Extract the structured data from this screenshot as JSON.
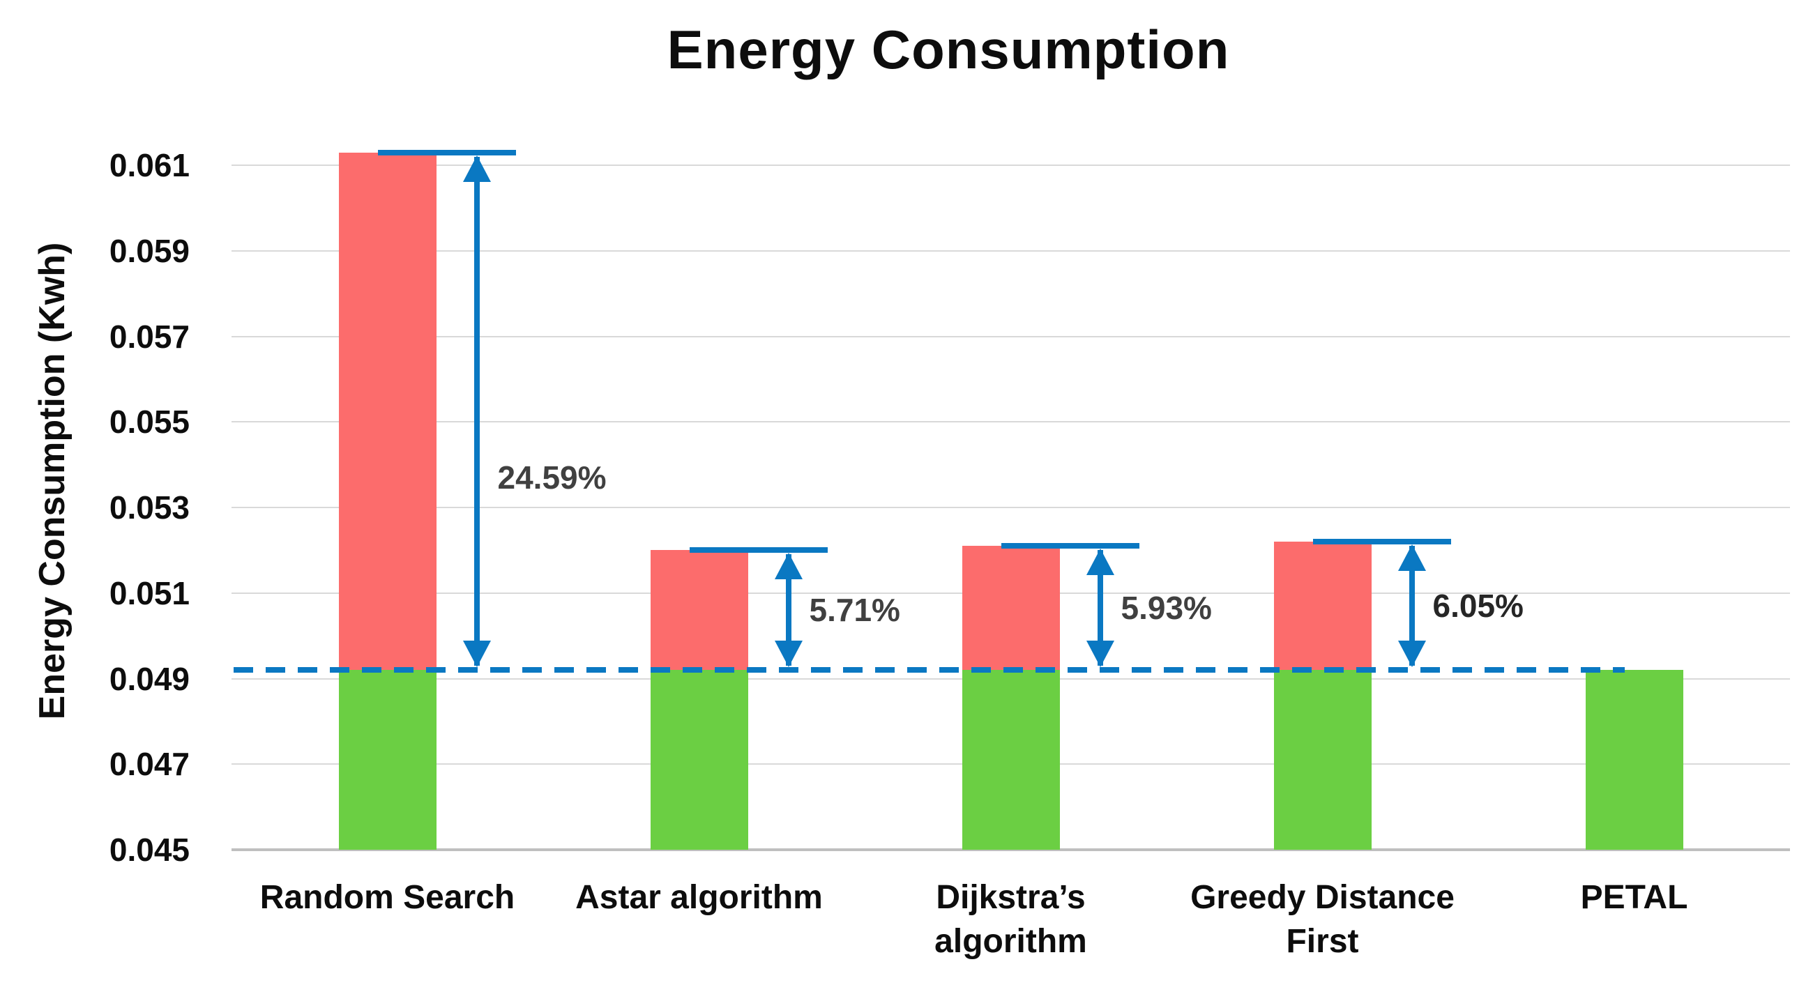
{
  "chart_data": {
    "type": "bar",
    "stacked": true,
    "title": "Energy Consumption",
    "ylabel": "Energy Consumption (Kwh)",
    "xlabel": "",
    "ylim": [
      0.045,
      0.061
    ],
    "ytick_step": 0.002,
    "yticks": [
      "0.045",
      "0.047",
      "0.049",
      "0.051",
      "0.053",
      "0.055",
      "0.057",
      "0.059",
      "0.061"
    ],
    "grid": true,
    "legend": "none",
    "categories": [
      "Random Search",
      "Astar algorithm",
      "Dijkstra’s algorithm",
      "Greedy Distance First",
      "PETAL"
    ],
    "category_label_lines": [
      [
        "Random Search"
      ],
      [
        "Astar algorithm"
      ],
      [
        "Dijkstra’s",
        "algorithm"
      ],
      [
        "Greedy Distance",
        "First"
      ],
      [
        "PETAL"
      ]
    ],
    "series": [
      {
        "name": "green-baseline-segment",
        "color": "#6BCF43",
        "values": [
          0.0492,
          0.0492,
          0.0492,
          0.0492,
          0.0492
        ]
      },
      {
        "name": "red-excess-segment",
        "color": "#FC6C6C",
        "values": [
          0.0121,
          0.0028,
          0.0029,
          0.003,
          0.0
        ]
      }
    ],
    "bar_totals": [
      0.0613,
      0.052,
      0.0521,
      0.0522,
      0.0492
    ],
    "baseline": {
      "value": 0.0492,
      "line_style": "dashed",
      "color": "#0A78C2"
    },
    "annotations": [
      {
        "category": "Random Search",
        "text": "24.59%",
        "color": "#404040"
      },
      {
        "category": "Astar algorithm",
        "text": "5.71%",
        "color": "#404040"
      },
      {
        "category": "Dijkstra’s algorithm",
        "text": "5.93%",
        "color": "#404040"
      },
      {
        "category": "Greedy Distance First",
        "text": "6.05%",
        "color": "#262626"
      }
    ],
    "colors": {
      "bar_green": "#6BCF43",
      "bar_red": "#FC6C6C",
      "arrow_blue": "#0A78C2",
      "gridline": "#D9D9D9",
      "axis_line": "#BFBFBF",
      "text": "#0d0d0d"
    }
  }
}
